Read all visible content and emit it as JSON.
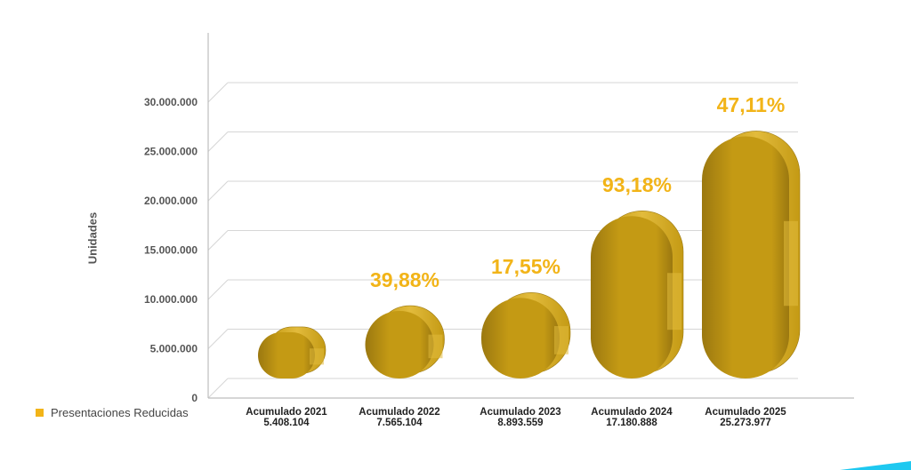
{
  "chart_data": {
    "type": "bar",
    "ylabel": "Unidades",
    "ylim": [
      0,
      30000000
    ],
    "yticks": [
      "0",
      "5.000.000",
      "10.000.000",
      "15.000.000",
      "20.000.000",
      "25.000.000",
      "30.000.000"
    ],
    "ytick_values": [
      0,
      5000000,
      10000000,
      15000000,
      20000000,
      25000000,
      30000000
    ],
    "categories": [
      "Acumulado 2021",
      "Acumulado 2022",
      "Acumulado 2023",
      "Acumulado 2024",
      "Acumulado 2025"
    ],
    "value_labels": [
      "5.408.104",
      "7.565.104",
      "8.893.559",
      "17.180.888",
      "25.273.977"
    ],
    "series": [
      {
        "name": "Presentaciones Reducidas",
        "values": [
          5408104,
          7565104,
          8893559,
          17180888,
          25273977
        ]
      }
    ],
    "growth_labels": [
      "",
      "39,88%",
      "17,55%",
      "93,18%",
      "47,11%"
    ],
    "grid": true,
    "legend_position": "bottom-left"
  },
  "colors": {
    "bar": "#C49A14",
    "bar_dark": "#9B7810",
    "bar_light": "#E2BB3C",
    "accent_text": "#F2B418",
    "legend_swatch": "#F2B418",
    "corner_accent": "#1EC8F0"
  }
}
